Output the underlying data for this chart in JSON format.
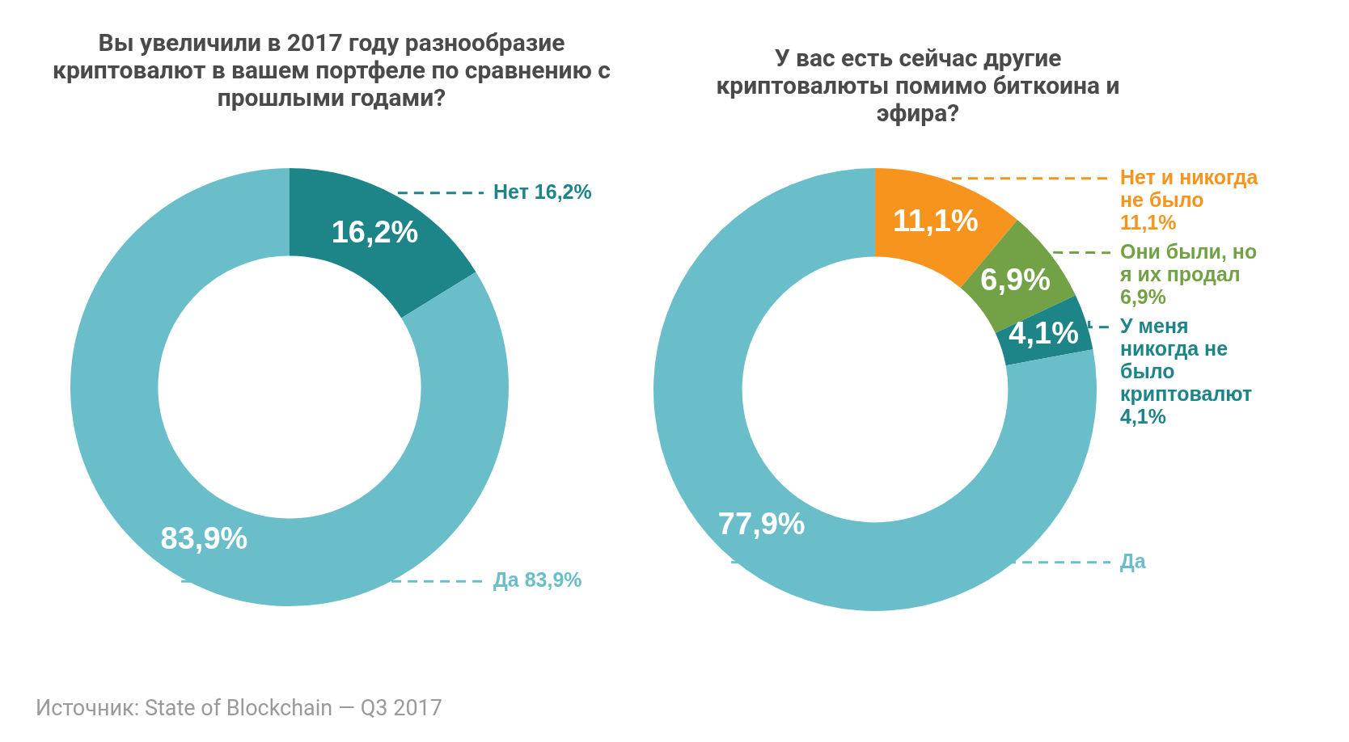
{
  "chart_data": [
    {
      "type": "donut",
      "title": "Вы увеличили в 2017 году разнообразие криптовалют в вашем портфеле по сравнению с прошлыми годами?",
      "categories": [
        "Нет 16,2%",
        "Да 83,9%"
      ],
      "values": [
        16.2,
        83.9
      ],
      "colors": [
        "#1d8488",
        "#69bec9"
      ],
      "value_labels": [
        "16,2%",
        "83,9%"
      ],
      "legend": false,
      "annotations": [
        "Источник: State of Blockchain — Q3 2017"
      ]
    },
    {
      "type": "donut",
      "title": "У вас есть сейчас другие криптовалюты помимо биткоина и эфира?",
      "categories": [
        "Нет и никогда не было 11,1%",
        "Они были, но я их продал 6,9%",
        "У меня никогда не было криптовалют 4,1%",
        "Да"
      ],
      "values": [
        11.1,
        6.9,
        4.1,
        77.9
      ],
      "colors": [
        "#f7941d",
        "#73a246",
        "#1d8488",
        "#69bec9"
      ],
      "value_labels": [
        "11,1%",
        "6,9%",
        "4,1%",
        "77,9%"
      ],
      "legend": false
    }
  ]
}
